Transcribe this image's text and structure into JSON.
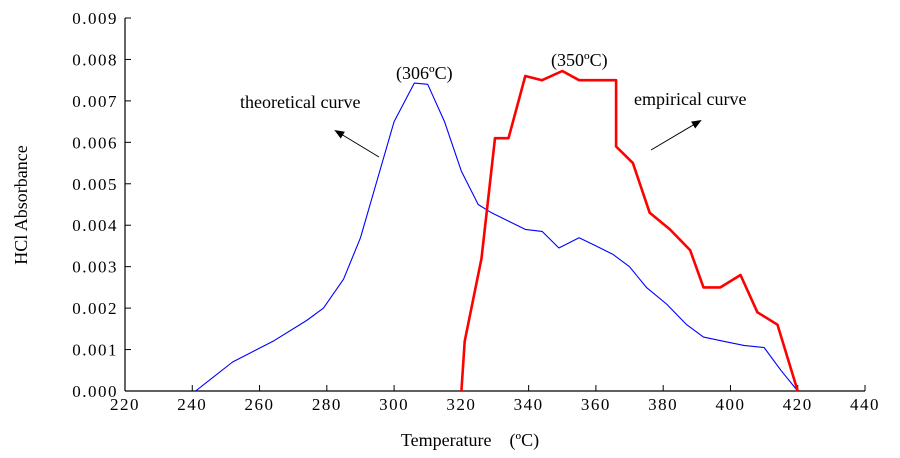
{
  "chart_data": {
    "type": "line",
    "title": "",
    "xlabel": "Temperature    (ºC)",
    "ylabel": "HCl Absorbance",
    "xlim": [
      220,
      440
    ],
    "ylim": [
      0.0,
      0.009
    ],
    "x_ticks": [
      220,
      240,
      260,
      280,
      300,
      320,
      340,
      360,
      380,
      400,
      420,
      440
    ],
    "x_tick_labels": [
      "220",
      "240",
      "260",
      "280",
      "300",
      "320",
      "340",
      "360",
      "380",
      "400",
      "420",
      "440"
    ],
    "y_ticks": [
      0,
      0.001,
      0.002,
      0.003,
      0.004,
      0.005,
      0.006,
      0.007,
      0.008,
      0.009
    ],
    "y_tick_labels": [
      "0.000",
      "0.001",
      "0.002",
      "0.003",
      "0.004",
      "0.005",
      "0.006",
      "0.007",
      "0.008",
      "0.009"
    ],
    "grid": false,
    "series": [
      {
        "name": "theoretical curve",
        "color": "#0000ff",
        "x": [
          241,
          252,
          264,
          274,
          279,
          285,
          290,
          295,
          300,
          306,
          310,
          315,
          320,
          325,
          329,
          334,
          339,
          344,
          349,
          355,
          360,
          365,
          370,
          375,
          381,
          387,
          392,
          398,
          404,
          410,
          415,
          420
        ],
        "y": [
          0.0,
          0.0007,
          0.0012,
          0.0017,
          0.002,
          0.0027,
          0.0037,
          0.0051,
          0.0065,
          0.00743,
          0.0074,
          0.0065,
          0.0053,
          0.0045,
          0.0043,
          0.0041,
          0.0039,
          0.00385,
          0.00345,
          0.0037,
          0.0035,
          0.0033,
          0.003,
          0.0025,
          0.0021,
          0.0016,
          0.0013,
          0.0012,
          0.0011,
          0.00105,
          0.0005,
          0.0
        ]
      },
      {
        "name": "empirical curve",
        "color": "#ff0000",
        "x": [
          320,
          321,
          326,
          330,
          334,
          339,
          344,
          350,
          355,
          361,
          366,
          366,
          371,
          376,
          382,
          388,
          392,
          397,
          403,
          408,
          414,
          420
        ],
        "y": [
          0.0,
          0.0012,
          0.0032,
          0.0061,
          0.0061,
          0.0076,
          0.0075,
          0.00772,
          0.0075,
          0.0075,
          0.0075,
          0.0059,
          0.0055,
          0.0043,
          0.0039,
          0.0034,
          0.0025,
          0.0025,
          0.0028,
          0.0019,
          0.0016,
          0.0
        ]
      }
    ],
    "annotations": [
      {
        "id": "theoretical",
        "text": "theoretical curve"
      },
      {
        "id": "empirical",
        "text": "empirical curve"
      },
      {
        "id": "peak-theoretical",
        "text": "(306ºC)"
      },
      {
        "id": "peak-empirical",
        "text": "(350ºC)"
      }
    ]
  }
}
